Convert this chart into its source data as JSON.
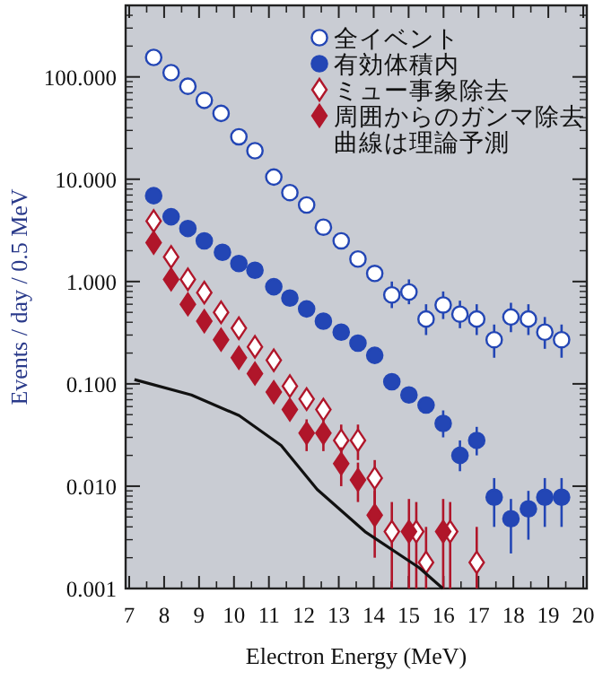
{
  "chart_data": {
    "type": "scatter",
    "xlabel": "Electron Energy (MeV)",
    "ylabel": "Events / day / 0.5 MeV",
    "log": "y",
    "xlim": [
      7,
      20
    ],
    "ylim": [
      0.001,
      500
    ],
    "xticks": [
      7,
      8,
      9,
      10,
      11,
      12,
      13,
      14,
      15,
      16,
      17,
      18,
      19,
      20
    ],
    "yticks": [
      {
        "value": 0.001,
        "label": "0.001"
      },
      {
        "value": 0.01,
        "label": "0.010"
      },
      {
        "value": 0.1,
        "label": "0.100"
      },
      {
        "value": 1,
        "label": "1.000"
      },
      {
        "value": 10,
        "label": "10.000"
      },
      {
        "value": 100,
        "label": "100.000"
      }
    ],
    "legend": "top right",
    "grid": false,
    "annotations": [
      "曲線は理論予測"
    ],
    "series": [
      {
        "name": "全イベント",
        "color": "#2346b5",
        "marker": "circle-open",
        "x": [
          7.7,
          8.2,
          8.68,
          9.15,
          9.63,
          10.14,
          10.6,
          11.14,
          11.6,
          12.08,
          12.56,
          13.07,
          13.55,
          14.03,
          14.52,
          15.01,
          15.5,
          15.99,
          16.47,
          16.95,
          17.45,
          17.93,
          18.43,
          18.9,
          19.38
        ],
        "values": [
          155,
          110,
          81,
          59,
          44,
          26,
          19,
          10.5,
          7.4,
          5.6,
          3.4,
          2.5,
          1.66,
          1.2,
          0.74,
          0.79,
          0.43,
          0.59,
          0.48,
          0.43,
          0.27,
          0.45,
          0.43,
          0.32,
          0.27
        ],
        "errors": [
          null,
          null,
          null,
          null,
          null,
          null,
          null,
          null,
          null,
          null,
          null,
          null,
          null,
          null,
          [
            0.55,
            1.0
          ],
          [
            0.6,
            1.05
          ],
          [
            0.3,
            0.6
          ],
          [
            0.43,
            0.8
          ],
          [
            0.35,
            0.65
          ],
          [
            0.3,
            0.6
          ],
          [
            0.18,
            0.38
          ],
          [
            0.32,
            0.62
          ],
          [
            0.3,
            0.6
          ],
          [
            0.22,
            0.45
          ],
          [
            0.18,
            0.38
          ]
        ]
      },
      {
        "name": "有効体積内",
        "color": "#2346b5",
        "marker": "circle",
        "x": [
          7.7,
          8.2,
          8.68,
          9.15,
          9.67,
          10.14,
          10.6,
          11.14,
          11.6,
          12.08,
          12.56,
          13.07,
          13.55,
          14.03,
          14.52,
          15.01,
          15.5,
          15.99,
          16.47,
          16.95,
          17.45,
          17.93,
          18.43,
          18.9,
          19.38
        ],
        "values": [
          6.9,
          4.3,
          3.3,
          2.5,
          1.93,
          1.5,
          1.29,
          0.89,
          0.69,
          0.54,
          0.41,
          0.32,
          0.25,
          0.19,
          0.105,
          0.078,
          0.062,
          0.041,
          0.02,
          0.028,
          0.0078,
          0.0048,
          0.006,
          0.0078,
          0.0078
        ],
        "errors": [
          null,
          null,
          null,
          null,
          null,
          null,
          null,
          null,
          null,
          null,
          null,
          null,
          null,
          null,
          null,
          null,
          null,
          [
            0.03,
            0.055
          ],
          [
            0.014,
            0.028
          ],
          [
            0.02,
            0.038
          ],
          [
            0.004,
            0.012
          ],
          [
            0.0022,
            0.0075
          ],
          [
            0.003,
            0.009
          ],
          [
            0.004,
            0.012
          ],
          [
            0.004,
            0.012
          ]
        ]
      },
      {
        "name": "ミュー事象除去",
        "color": "#b0162a",
        "marker": "diamond-open",
        "x": [
          7.7,
          8.2,
          8.68,
          9.15,
          9.63,
          10.14,
          10.6,
          11.14,
          11.6,
          12.08,
          12.56,
          13.07,
          13.55,
          14.03,
          14.52,
          15.22,
          15.5,
          16.19,
          16.95
        ],
        "values": [
          3.9,
          1.74,
          1.05,
          0.78,
          0.5,
          0.35,
          0.23,
          0.17,
          0.095,
          0.071,
          0.056,
          0.028,
          0.028,
          0.012,
          0.0036,
          0.0036,
          0.0018,
          0.0036,
          0.0018
        ],
        "errors": [
          null,
          null,
          null,
          null,
          null,
          null,
          null,
          null,
          null,
          null,
          null,
          [
            0.018,
            0.04
          ],
          [
            0.018,
            0.04
          ],
          [
            0.006,
            0.018
          ],
          [
            0.001,
            0.007
          ],
          [
            0.001,
            0.007
          ],
          [
            0.001,
            0.004
          ],
          [
            0.001,
            0.007
          ],
          [
            0.001,
            0.004
          ]
        ]
      },
      {
        "name": "周囲からのガンマ除去",
        "color": "#b0162a",
        "marker": "diamond",
        "x": [
          7.7,
          8.2,
          8.68,
          9.15,
          9.63,
          10.14,
          10.6,
          11.14,
          11.6,
          12.08,
          12.56,
          13.07,
          13.55,
          14.03,
          15.01,
          15.99
        ],
        "values": [
          2.4,
          1.05,
          0.6,
          0.41,
          0.27,
          0.18,
          0.126,
          0.083,
          0.056,
          0.033,
          0.033,
          0.0166,
          0.0115,
          0.0052,
          0.0036,
          0.0036
        ],
        "errors": [
          null,
          null,
          null,
          null,
          null,
          null,
          null,
          null,
          null,
          [
            0.022,
            0.045
          ],
          [
            0.022,
            0.045
          ],
          [
            0.01,
            0.024
          ],
          [
            0.007,
            0.017
          ],
          [
            0.002,
            0.009
          ],
          [
            0.001,
            0.0075
          ],
          [
            0.001,
            0.0075
          ]
        ]
      },
      {
        "type": "line",
        "color": "#111111",
        "marker": "none",
        "line_style": "solid",
        "x": [
          7.15,
          8.78,
          10.15,
          11.35,
          12.38,
          13.75,
          15.3,
          15.98
        ],
        "values": [
          0.11,
          0.078,
          0.049,
          0.025,
          0.0093,
          0.0036,
          0.0016,
          0.001
        ]
      }
    ]
  }
}
